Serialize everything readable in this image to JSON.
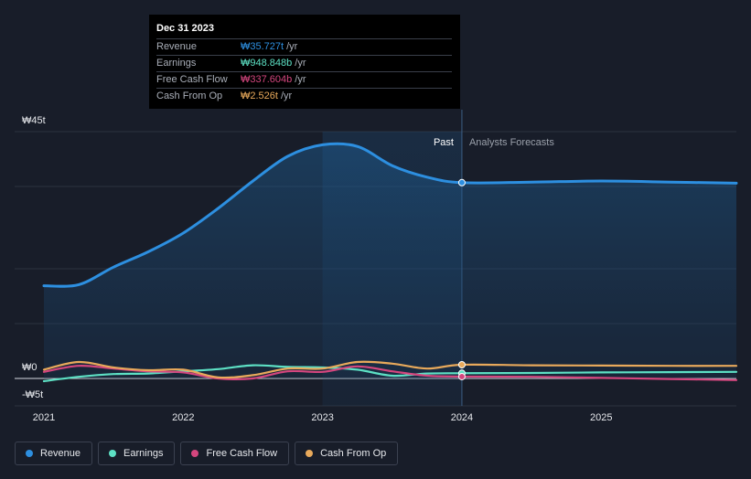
{
  "chart_data": {
    "type": "line",
    "y_unit_prefix": "₩",
    "ylim": [
      -5,
      45
    ],
    "y_ticks": [
      {
        "value": 45,
        "label": "₩45t"
      },
      {
        "value": 0,
        "label": "₩0"
      },
      {
        "value": -5,
        "label": "-₩5t"
      }
    ],
    "xlim": [
      2020.9,
      2025.97
    ],
    "x_ticks": [
      {
        "value": 2021,
        "label": "2021"
      },
      {
        "value": 2022,
        "label": "2022"
      },
      {
        "value": 2023,
        "label": "2023"
      },
      {
        "value": 2024,
        "label": "2024"
      },
      {
        "value": 2025,
        "label": "2025"
      }
    ],
    "past_label": "Past",
    "forecast_label": "Analysts Forecasts",
    "divider_x": 2024,
    "highlight_from": 2023,
    "series": [
      {
        "name": "Revenue",
        "color": "#2d8fe0",
        "area": true,
        "points": [
          [
            2021.0,
            16.9
          ],
          [
            2021.25,
            17.1
          ],
          [
            2021.5,
            20.3
          ],
          [
            2021.75,
            23.1
          ],
          [
            2022.0,
            26.5
          ],
          [
            2022.25,
            31.0
          ],
          [
            2022.5,
            36.0
          ],
          [
            2022.75,
            40.5
          ],
          [
            2023.0,
            42.6
          ],
          [
            2023.25,
            42.3
          ],
          [
            2023.5,
            38.8
          ],
          [
            2023.75,
            36.7
          ],
          [
            2024.0,
            35.7
          ],
          [
            2024.5,
            35.8
          ],
          [
            2025.0,
            36.0
          ],
          [
            2025.5,
            35.8
          ],
          [
            2025.97,
            35.6
          ]
        ]
      },
      {
        "name": "Earnings",
        "color": "#5de0c4",
        "area": false,
        "points": [
          [
            2021.0,
            -0.5
          ],
          [
            2021.25,
            0.3
          ],
          [
            2021.5,
            0.8
          ],
          [
            2021.75,
            0.9
          ],
          [
            2022.0,
            1.3
          ],
          [
            2022.25,
            1.7
          ],
          [
            2022.5,
            2.4
          ],
          [
            2022.75,
            2.1
          ],
          [
            2023.0,
            2.0
          ],
          [
            2023.25,
            1.6
          ],
          [
            2023.5,
            0.5
          ],
          [
            2023.75,
            0.9
          ],
          [
            2024.0,
            0.95
          ],
          [
            2024.5,
            1.0
          ],
          [
            2025.0,
            1.1
          ],
          [
            2025.5,
            1.15
          ],
          [
            2025.97,
            1.2
          ]
        ]
      },
      {
        "name": "Free Cash Flow",
        "color": "#d4467e",
        "area": false,
        "points": [
          [
            2021.0,
            1.2
          ],
          [
            2021.25,
            2.3
          ],
          [
            2021.5,
            1.8
          ],
          [
            2021.75,
            1.3
          ],
          [
            2022.0,
            1.1
          ],
          [
            2022.25,
            0.0
          ],
          [
            2022.5,
            0.0
          ],
          [
            2022.75,
            1.3
          ],
          [
            2023.0,
            1.2
          ],
          [
            2023.25,
            2.2
          ],
          [
            2023.5,
            1.3
          ],
          [
            2023.75,
            0.5
          ],
          [
            2024.0,
            0.34
          ],
          [
            2024.5,
            0.3
          ],
          [
            2025.0,
            0.1
          ],
          [
            2025.5,
            -0.1
          ],
          [
            2025.97,
            -0.3
          ]
        ]
      },
      {
        "name": "Cash From Op",
        "color": "#e8a95b",
        "area": false,
        "points": [
          [
            2021.0,
            1.6
          ],
          [
            2021.25,
            3.0
          ],
          [
            2021.5,
            2.0
          ],
          [
            2021.75,
            1.5
          ],
          [
            2022.0,
            1.6
          ],
          [
            2022.25,
            0.2
          ],
          [
            2022.5,
            0.6
          ],
          [
            2022.75,
            1.8
          ],
          [
            2023.0,
            1.8
          ],
          [
            2023.25,
            3.0
          ],
          [
            2023.5,
            2.7
          ],
          [
            2023.75,
            1.8
          ],
          [
            2024.0,
            2.5
          ],
          [
            2024.5,
            2.4
          ],
          [
            2025.0,
            2.35
          ],
          [
            2025.5,
            2.3
          ],
          [
            2025.97,
            2.3
          ]
        ]
      }
    ]
  },
  "tooltip": {
    "title": "Dec 31 2023",
    "rows": [
      {
        "name": "Revenue",
        "value": "₩35.727t",
        "unit": "/yr",
        "color": "#2d8fe0"
      },
      {
        "name": "Earnings",
        "value": "₩948.848b",
        "unit": "/yr",
        "color": "#5de0c4"
      },
      {
        "name": "Free Cash Flow",
        "value": "₩337.604b",
        "unit": "/yr",
        "color": "#d4467e"
      },
      {
        "name": "Cash From Op",
        "value": "₩2.526t",
        "unit": "/yr",
        "color": "#e8a95b"
      }
    ]
  },
  "legend": [
    {
      "label": "Revenue",
      "color": "#2d8fe0"
    },
    {
      "label": "Earnings",
      "color": "#5de0c4"
    },
    {
      "label": "Free Cash Flow",
      "color": "#d4467e"
    },
    {
      "label": "Cash From Op",
      "color": "#e8a95b"
    }
  ]
}
